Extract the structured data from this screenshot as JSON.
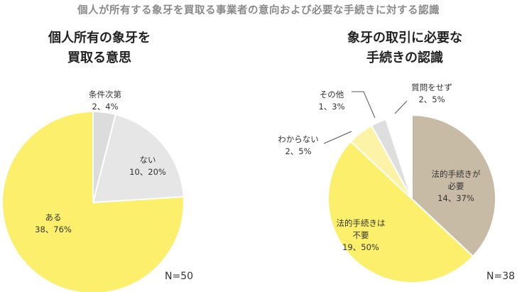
{
  "title": "個人が所有する象牙を買取る事業者の意向および必要な手続きに対する認識",
  "chart_data": [
    {
      "type": "pie",
      "title_lines": [
        "個人所有の象牙を",
        "買取る意思"
      ],
      "n_label": "N=50",
      "slices": [
        {
          "label_lines": [
            "条件次第"
          ],
          "value_text": "2、4%",
          "count": 2,
          "percent": 4,
          "color": "#dcdcdc"
        },
        {
          "label_lines": [
            "ない"
          ],
          "value_text": "10、20%",
          "count": 10,
          "percent": 20,
          "color": "#e6e6e6"
        },
        {
          "label_lines": [
            "ある"
          ],
          "value_text": "38、76%",
          "count": 38,
          "percent": 76,
          "color": "#fbef6c"
        }
      ]
    },
    {
      "type": "pie",
      "title_lines": [
        "象牙の取引に必要な",
        "手続きの認識"
      ],
      "n_label": "N=38",
      "slices": [
        {
          "label_lines": [
            "法的手続きが",
            "必要"
          ],
          "value_text": "14、37%",
          "count": 14,
          "percent": 37,
          "color": "#c8bba6"
        },
        {
          "label_lines": [
            "法的手続きは",
            "不要"
          ],
          "value_text": "19、50%",
          "count": 19,
          "percent": 50,
          "color": "#fbef6c"
        },
        {
          "label_lines": [
            "わからない"
          ],
          "value_text": "2、5%",
          "count": 2,
          "percent": 5,
          "color": "#fdf3a6"
        },
        {
          "label_lines": [
            "その他"
          ],
          "value_text": "1、3%",
          "count": 1,
          "percent": 3,
          "color": "#dedede"
        },
        {
          "label_lines": [
            "質問をせず"
          ],
          "value_text": "2、5%",
          "count": 2,
          "percent": 5,
          "color": "#ffffff"
        }
      ]
    }
  ]
}
